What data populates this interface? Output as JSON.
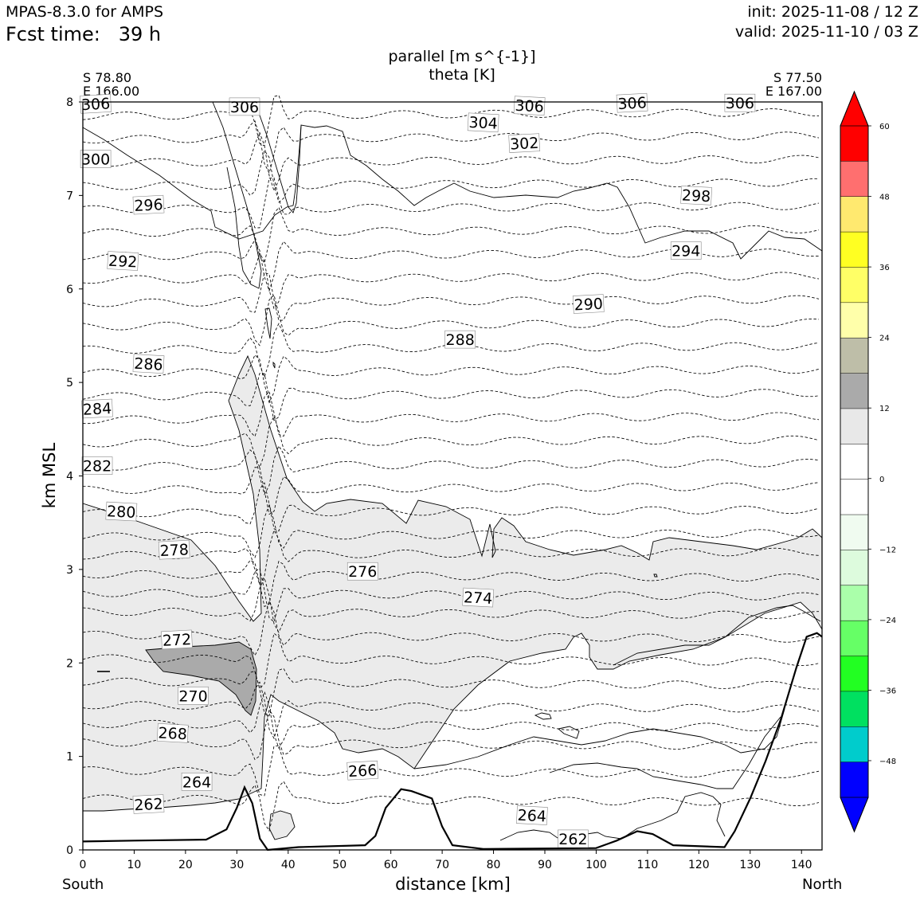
{
  "header": {
    "model": "MPAS-8.3.0 for AMPS",
    "fcst": "Fcst time:   39 h",
    "init": "init: 2025-11-08 / 12 Z",
    "valid": "valid: 2025-11-10 / 03 Z"
  },
  "chart_data": {
    "type": "contour",
    "title_lines": [
      "parallel [m s^{-1}]",
      "theta [K]"
    ],
    "xlabel": "distance [km]",
    "ylabel": "km MSL",
    "xlim": [
      0,
      144
    ],
    "ylim": [
      0,
      8
    ],
    "xticks": [
      0,
      10,
      20,
      30,
      40,
      50,
      60,
      70,
      80,
      90,
      100,
      110,
      120,
      130,
      140
    ],
    "yticks": [
      0,
      1,
      2,
      3,
      4,
      5,
      6,
      7,
      8
    ],
    "start_point": {
      "lat": "S 78.80",
      "lon": "E 166.00",
      "label": "South"
    },
    "end_point": {
      "lat": "S 77.50",
      "lon": "E 167.00",
      "label": "North"
    },
    "theta_labels": [
      {
        "v": "306",
        "x": 2.5,
        "y": 7.98
      },
      {
        "v": "306",
        "x": 31.5,
        "y": 7.95
      },
      {
        "v": "306",
        "x": 87,
        "y": 7.96
      },
      {
        "v": "306",
        "x": 107,
        "y": 7.99
      },
      {
        "v": "306",
        "x": 128,
        "y": 7.99
      },
      {
        "v": "304",
        "x": 78,
        "y": 7.78
      },
      {
        "v": "302",
        "x": 86,
        "y": 7.56
      },
      {
        "v": "300",
        "x": 2.5,
        "y": 7.39
      },
      {
        "v": "298",
        "x": 119.5,
        "y": 7.0
      },
      {
        "v": "296",
        "x": 12.8,
        "y": 6.9
      },
      {
        "v": "294",
        "x": 117.5,
        "y": 6.41
      },
      {
        "v": "292",
        "x": 7.8,
        "y": 6.3
      },
      {
        "v": "290",
        "x": 98.5,
        "y": 5.84
      },
      {
        "v": "288",
        "x": 73.5,
        "y": 5.46
      },
      {
        "v": "286",
        "x": 12.8,
        "y": 5.2
      },
      {
        "v": "284",
        "x": 2.8,
        "y": 4.72
      },
      {
        "v": "282",
        "x": 2.8,
        "y": 4.11
      },
      {
        "v": "280",
        "x": 7.5,
        "y": 3.62
      },
      {
        "v": "278",
        "x": 17.8,
        "y": 3.21
      },
      {
        "v": "276",
        "x": 54.5,
        "y": 2.98
      },
      {
        "v": "274",
        "x": 77,
        "y": 2.7
      },
      {
        "v": "272",
        "x": 18.3,
        "y": 2.25
      },
      {
        "v": "270",
        "x": 21.5,
        "y": 1.65
      },
      {
        "v": "268",
        "x": 17.5,
        "y": 1.25
      },
      {
        "v": "266",
        "x": 54.5,
        "y": 0.85
      },
      {
        "v": "264",
        "x": 22.2,
        "y": 0.73
      },
      {
        "v": "264",
        "x": 87.5,
        "y": 0.37
      },
      {
        "v": "262",
        "x": 12.8,
        "y": 0.49
      },
      {
        "v": "262",
        "x": 95.5,
        "y": 0.12
      }
    ],
    "colorbar": {
      "ticks": [
        60,
        48,
        36,
        24,
        12,
        0,
        -12,
        -24,
        -36,
        -48
      ],
      "tick_labels": [
        "60",
        "48",
        "36",
        "24",
        "12",
        "0",
        "−12",
        "−24",
        "−36",
        "−48"
      ],
      "colors_top_to_bottom": [
        "#ff0000",
        "#ff6f6f",
        "#ffe96f",
        "#ffff22",
        "#ffff66",
        "#ffffaa",
        "#bebea8",
        "#aaaaaa",
        "#e8e8e8",
        "#ffffff",
        "#ffffff",
        "#f0fbf0",
        "#ddfbdd",
        "#aaffaa",
        "#66ff66",
        "#22ff22",
        "#00e060",
        "#00cccc",
        "#0000ff"
      ],
      "extend_over": "#ff0000",
      "extend_under": "#0000ff"
    },
    "shading_colors": {
      "light": "#ebebeb",
      "dark": "#aaaaaa"
    },
    "terrain_profile": [
      [
        0,
        0.09
      ],
      [
        10,
        0.1
      ],
      [
        24,
        0.11
      ],
      [
        28,
        0.22
      ],
      [
        30,
        0.45
      ],
      [
        31.5,
        0.67
      ],
      [
        33,
        0.5
      ],
      [
        34.5,
        0.12
      ],
      [
        36,
        0.0
      ],
      [
        42,
        0.03
      ],
      [
        55,
        0.05
      ],
      [
        57,
        0.15
      ],
      [
        59,
        0.45
      ],
      [
        62,
        0.65
      ],
      [
        64,
        0.63
      ],
      [
        68,
        0.55
      ],
      [
        70,
        0.25
      ],
      [
        72,
        0.05
      ],
      [
        78,
        0.01
      ],
      [
        100,
        0.02
      ],
      [
        104,
        0.1
      ],
      [
        108,
        0.2
      ],
      [
        111,
        0.17
      ],
      [
        115,
        0.05
      ],
      [
        125,
        0.03
      ],
      [
        127,
        0.2
      ],
      [
        130,
        0.55
      ],
      [
        133,
        0.95
      ],
      [
        136,
        1.4
      ],
      [
        139,
        1.95
      ],
      [
        141,
        2.28
      ],
      [
        143,
        2.32
      ],
      [
        144,
        2.28
      ]
    ]
  }
}
